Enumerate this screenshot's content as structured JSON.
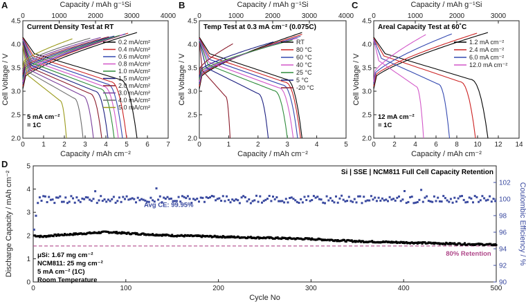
{
  "chart_data": [
    {
      "panel": "A",
      "type": "line",
      "title": "Current Density Test at RT",
      "xlabel": "Capacity / mAh cm⁻²",
      "x2label": "Capacity / mAh g⁻¹Si",
      "ylabel": "Cell Voltage / V",
      "xlim": [
        0,
        7
      ],
      "ylim": [
        2.0,
        4.5
      ],
      "x2lim": [
        0,
        4000
      ],
      "xticks": [
        "0",
        "1",
        "2",
        "3",
        "4",
        "5",
        "6",
        "7"
      ],
      "x2ticks": [
        "0",
        "1000",
        "2000",
        "3000",
        "4000"
      ],
      "yticks": [
        "2.0",
        "2.5",
        "3.0",
        "3.5",
        "4.0",
        "4.5"
      ],
      "note": [
        "5 mA cm⁻²",
        "= 1C"
      ],
      "series": [
        {
          "name": "0.2 mA/cm²",
          "color": "#000000",
          "capacity": 5.5
        },
        {
          "name": "0.4 mA/cm²",
          "color": "#cc2222",
          "capacity": 5.0
        },
        {
          "name": "0.6 mA/cm²",
          "color": "#3348b0",
          "capacity": 4.8
        },
        {
          "name": "0.8 mA/cm²",
          "color": "#d257c8",
          "capacity": 4.6
        },
        {
          "name": "1.0 mA/cm²",
          "color": "#2e8b3a",
          "capacity": 4.4
        },
        {
          "name": "1.5 mA/cm²",
          "color": "#1a1e80",
          "capacity": 4.1
        },
        {
          "name": "2.0 mA/cm²",
          "color": "#8a1a2a",
          "capacity": 3.8
        },
        {
          "name": "3.0 mA/cm²",
          "color": "#7a3e9c",
          "capacity": 3.4
        },
        {
          "name": "4.0 mA/cm²",
          "color": "#6a6a6a",
          "capacity": 2.9
        },
        {
          "name": "5.0 mA/cm²",
          "color": "#9a9a1a",
          "capacity": 2.1
        }
      ]
    },
    {
      "panel": "B",
      "type": "line",
      "title": "Temp Test at 0.3 mA cm⁻² (0.075C)",
      "xlabel": "Capacity / mAh cm⁻²",
      "x2label": "Capacity / mAh g⁻¹Si",
      "ylabel": "Cell Voltage / V",
      "xlim": [
        0,
        5
      ],
      "ylim": [
        2.0,
        4.5
      ],
      "x2lim": [
        0,
        4000
      ],
      "xticks": [
        "0",
        "1",
        "2",
        "3",
        "4",
        "5"
      ],
      "x2ticks": [
        "0",
        "1000",
        "2000",
        "3000",
        "4000"
      ],
      "yticks": [
        "2.0",
        "2.5",
        "3.0",
        "3.5",
        "4.0",
        "4.5"
      ],
      "series": [
        {
          "name": "RT",
          "color": "#000000",
          "capacity": 3.5
        },
        {
          "name": "80 °C",
          "color": "#cc2222",
          "capacity": 3.45
        },
        {
          "name": "60 °C",
          "color": "#3348b0",
          "capacity": 3.35
        },
        {
          "name": "40 °C",
          "color": "#d257c8",
          "capacity": 3.2
        },
        {
          "name": "25 °C",
          "color": "#2e8b3a",
          "capacity": 3.0
        },
        {
          "name": "5 °C",
          "color": "#1a1e80",
          "capacity": 2.35
        },
        {
          "name": "-20 °C",
          "color": "#8a1a2a",
          "capacity": 1.05
        }
      ]
    },
    {
      "panel": "C",
      "type": "line",
      "title": "Areal Capacity Test at 60˚C",
      "xlabel": "Capacity / mAh cm⁻²",
      "x2label": "Capacity / mAh g⁻¹Si",
      "ylabel": "Cell Voltage / V",
      "xlim": [
        0,
        14
      ],
      "ylim": [
        2.0,
        4.5
      ],
      "x2lim": [
        0,
        3500
      ],
      "xticks": [
        "0",
        "2",
        "4",
        "6",
        "8",
        "10",
        "12",
        "14"
      ],
      "x2ticks": [
        "0",
        "1000",
        "2000",
        "3000"
      ],
      "yticks": [
        "2.0",
        "2.5",
        "3.0",
        "3.5",
        "4.0",
        "4.5"
      ],
      "note": [
        "12 mA cm⁻²",
        "= 1C"
      ],
      "series": [
        {
          "name": "1.2 mA cm⁻²",
          "color": "#000000",
          "capacity": 11.0
        },
        {
          "name": "2.4 mA cm⁻²",
          "color": "#cc2222",
          "capacity": 9.8
        },
        {
          "name": "6.0 mA cm⁻²",
          "color": "#3348b0",
          "capacity": 7.3
        },
        {
          "name": "12.0 mA cm⁻²",
          "color": "#d257c8",
          "capacity": 4.8
        }
      ]
    },
    {
      "panel": "D",
      "type": "scatter",
      "title": "Si | SSE | NCM811 Full Cell Capacity Retention",
      "xlabel": "Cycle No",
      "ylabel": "Discharge Capacity / mAh cm⁻²",
      "y2label": "Coulombic Efficiency / %",
      "xlim": [
        0,
        500
      ],
      "ylim": [
        0,
        5
      ],
      "y2lim": [
        90,
        104
      ],
      "xticks": [
        "0",
        "100",
        "200",
        "300",
        "400",
        "500"
      ],
      "yticks": [
        "0",
        "1",
        "2",
        "3",
        "4",
        "5"
      ],
      "y2ticks": [
        "90",
        "92",
        "94",
        "96",
        "98",
        "100",
        "102"
      ],
      "retention_line": {
        "value": 1.55,
        "label": "80% Retention",
        "color": "#b0488a"
      },
      "ce_label": "Avg CE: 99.95%",
      "ce_avg": 99.95,
      "capacity_series": {
        "name": "Discharge Capacity",
        "color": "#000000",
        "cycles": [
          1,
          10,
          20,
          40,
          60,
          80,
          100,
          150,
          200,
          250,
          300,
          350,
          400,
          450,
          500
        ],
        "values": [
          2.0,
          1.95,
          2.0,
          2.05,
          2.1,
          2.15,
          2.1,
          2.0,
          1.95,
          1.9,
          1.85,
          1.75,
          1.7,
          1.65,
          1.6
        ]
      },
      "ce_series": {
        "name": "Coulombic Efficiency",
        "color": "#3a4aa0"
      },
      "notes": [
        "μSi: 1.67 mg cm⁻²",
        "NCM811: 25 mg cm⁻²",
        "5 mA cm⁻² (1C)",
        "Room Temperature"
      ]
    }
  ]
}
